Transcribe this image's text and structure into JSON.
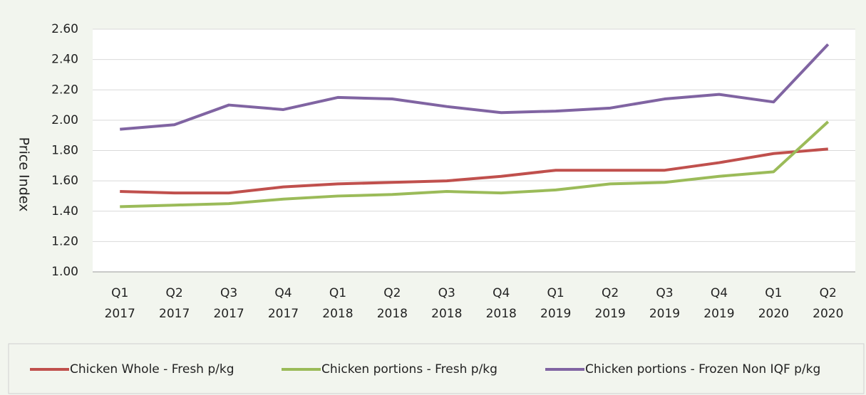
{
  "chart_data": {
    "type": "line",
    "y_label": "Price Index",
    "categories": [
      "Q1 2017",
      "Q2 2017",
      "Q3 2017",
      "Q4 2017",
      "Q1 2018",
      "Q2 2018",
      "Q3 2018",
      "Q4 2018",
      "Q1 2019",
      "Q2 2019",
      "Q3 2019",
      "Q4 2019",
      "Q1 2020",
      "Q2 2020"
    ],
    "series": [
      {
        "name": "Chicken Whole - Fresh p/kg",
        "color": "#c0504d",
        "values": [
          1.53,
          1.52,
          1.52,
          1.56,
          1.58,
          1.59,
          1.6,
          1.63,
          1.67,
          1.67,
          1.67,
          1.72,
          1.78,
          1.81
        ]
      },
      {
        "name": "Chicken portions - Fresh p/kg",
        "color": "#9bbb59",
        "values": [
          1.43,
          1.44,
          1.45,
          1.48,
          1.5,
          1.51,
          1.53,
          1.52,
          1.54,
          1.58,
          1.59,
          1.63,
          1.66,
          1.99
        ]
      },
      {
        "name": "Chicken portions - Frozen Non IQF p/kg",
        "color": "#8064a2",
        "values": [
          1.94,
          1.97,
          2.1,
          2.07,
          2.15,
          2.14,
          2.09,
          2.05,
          2.06,
          2.08,
          2.14,
          2.17,
          2.12,
          2.5
        ]
      }
    ],
    "ylim": [
      1.0,
      2.6
    ],
    "yticks": [
      {
        "value": 1.0,
        "label": "1.00"
      },
      {
        "value": 1.2,
        "label": "1.20"
      },
      {
        "value": 1.4,
        "label": "1.40"
      },
      {
        "value": 1.6,
        "label": "1.60"
      },
      {
        "value": 1.8,
        "label": "1.80"
      },
      {
        "value": 2.0,
        "label": "2.00"
      },
      {
        "value": 2.2,
        "label": "2.20"
      },
      {
        "value": 2.4,
        "label": "2.40"
      },
      {
        "value": 2.6,
        "label": "2.60"
      }
    ],
    "grid": true,
    "legend": "bottom"
  }
}
